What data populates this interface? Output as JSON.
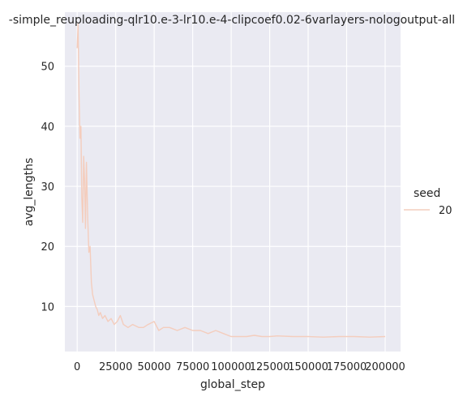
{
  "chart_data": {
    "type": "line",
    "title": "-simple_reuploading-qlr10.e-3-lr10.e-4-clipcoef0.02-6varlayers-nologoutput-all",
    "xlabel": "global_step",
    "ylabel": "avg_lengths",
    "xlim": [
      -8000,
      210000
    ],
    "ylim": [
      2.5,
      59
    ],
    "x_ticks": [
      0,
      25000,
      50000,
      75000,
      100000,
      125000,
      150000,
      175000,
      200000
    ],
    "x_tick_labels": [
      "0",
      "25000",
      "50000",
      "75000",
      "100000",
      "125000",
      "150000",
      "175000",
      "200000"
    ],
    "y_ticks": [
      10,
      20,
      30,
      40,
      50
    ],
    "y_tick_labels": [
      "10",
      "20",
      "30",
      "40",
      "50"
    ],
    "grid": true,
    "legend": {
      "title": "seed",
      "placement": "right"
    },
    "series": [
      {
        "name": "20",
        "color": "#f4cdbd",
        "x": [
          0,
          600,
          1200,
          1800,
          2400,
          3000,
          3600,
          4200,
          4800,
          5400,
          6000,
          6800,
          7600,
          8400,
          9200,
          10000,
          11000,
          12000,
          13000,
          14000,
          15000,
          16500,
          18000,
          20000,
          22000,
          24000,
          26000,
          28000,
          30000,
          33000,
          36000,
          40000,
          43000,
          46000,
          50000,
          53000,
          56000,
          60000,
          65000,
          70000,
          75000,
          80000,
          85000,
          90000,
          95000,
          100000,
          105000,
          110000,
          115000,
          120000,
          125000,
          130000,
          140000,
          150000,
          160000,
          170000,
          180000,
          190000,
          200000
        ],
        "y": [
          53,
          57,
          45,
          38,
          40,
          28,
          24,
          35,
          31,
          23,
          34,
          25,
          19,
          20,
          14,
          12,
          11,
          10,
          9.5,
          8.5,
          9,
          8,
          8.5,
          7.5,
          8,
          7,
          7.5,
          8.5,
          7,
          6.5,
          7,
          6.5,
          6.5,
          7,
          7.5,
          6,
          6.5,
          6.5,
          6,
          6.5,
          6,
          6,
          5.5,
          6,
          5.5,
          5,
          5,
          5,
          5.2,
          5,
          5,
          5.1,
          5,
          5,
          4.9,
          5,
          5,
          4.9,
          5
        ]
      }
    ]
  }
}
